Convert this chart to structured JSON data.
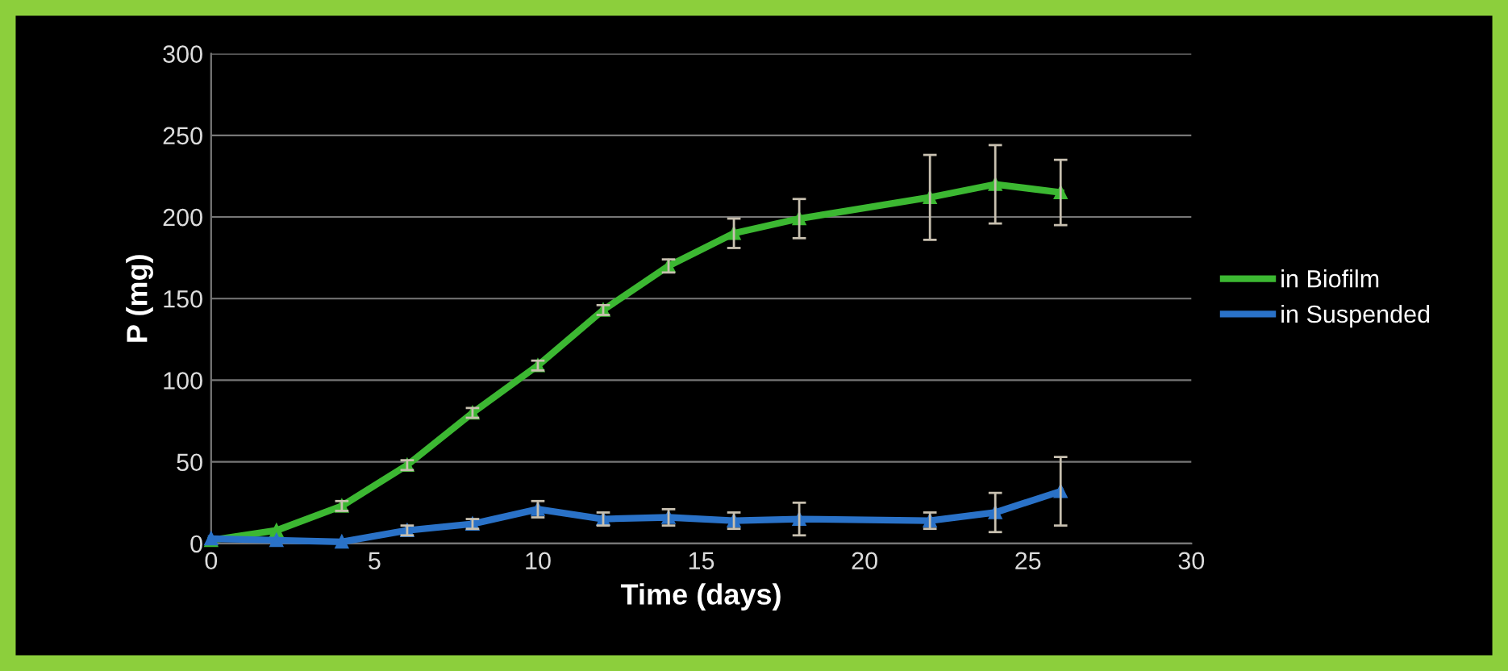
{
  "chart_data": {
    "type": "line",
    "xlabel": "Time (days)",
    "ylabel": "P (mg)",
    "x": [
      0,
      2,
      4,
      6,
      8,
      10,
      12,
      14,
      16,
      18,
      22,
      24,
      26
    ],
    "series": [
      {
        "name": "in Biofilm",
        "color": "#3cb832",
        "values": [
          2,
          8,
          23,
          48,
          80,
          109,
          143,
          170,
          190,
          199,
          212,
          220,
          215
        ],
        "errors": [
          null,
          null,
          3,
          3,
          3,
          3,
          3,
          4,
          9,
          12,
          26,
          24,
          20
        ]
      },
      {
        "name": "in Suspended",
        "color": "#2a72c8",
        "values": [
          3,
          2,
          1,
          8,
          12,
          21,
          15,
          16,
          14,
          15,
          14,
          19,
          32
        ],
        "errors": [
          null,
          null,
          null,
          3,
          3,
          5,
          4,
          5,
          5,
          10,
          5,
          12,
          21
        ]
      }
    ],
    "xlim": [
      0,
      30
    ],
    "xticks": [
      0,
      5,
      10,
      15,
      20,
      25,
      30
    ],
    "ylim": [
      0,
      300
    ],
    "yticks": [
      0,
      50,
      100,
      150,
      200,
      250,
      300
    ],
    "grid": "y",
    "legend": "right",
    "marker": "triangle",
    "line_style": "solid"
  }
}
